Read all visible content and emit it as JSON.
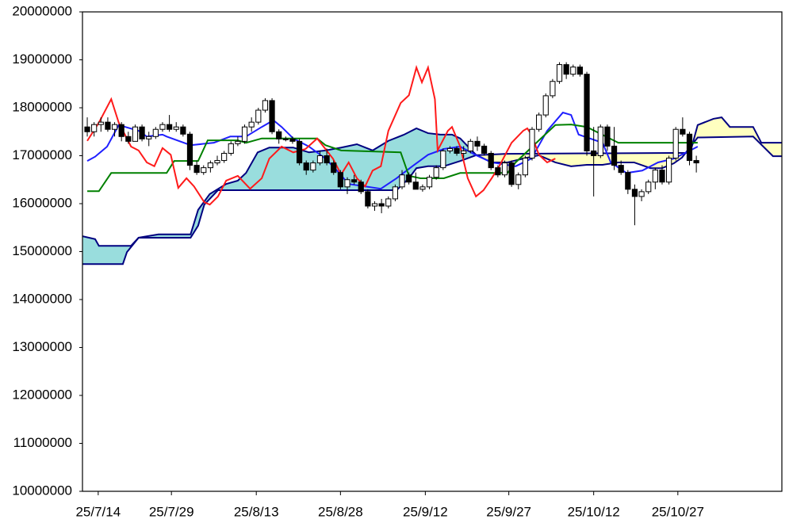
{
  "chart_data": {
    "type": "candlestick",
    "x": [
      0,
      1,
      2,
      3,
      4,
      5,
      6,
      7,
      8,
      9,
      10,
      11,
      12,
      13,
      14,
      15,
      16,
      17,
      18,
      19,
      20,
      21,
      22,
      23,
      24,
      25,
      26,
      27,
      28,
      29,
      30,
      31,
      32,
      33,
      34,
      35,
      36,
      37,
      38,
      39,
      40,
      41,
      42,
      43,
      44,
      45,
      46,
      47,
      48,
      49,
      50,
      51,
      52,
      53,
      54,
      55,
      56,
      57,
      58,
      59,
      60,
      61,
      62,
      63,
      64,
      65,
      66,
      67,
      68,
      69,
      70,
      71,
      72,
      73,
      74,
      75,
      76,
      77,
      78,
      79,
      80,
      81,
      82,
      83,
      84,
      85,
      86,
      87,
      88,
      89
    ],
    "open": [
      17600000,
      17500000,
      17650000,
      17700000,
      17550000,
      17650000,
      17400000,
      17300000,
      17600000,
      17350000,
      17400000,
      17550000,
      17650000,
      17550000,
      17600000,
      17450000,
      16800000,
      16650000,
      16750000,
      16850000,
      16900000,
      17050000,
      17250000,
      17300000,
      17600000,
      17700000,
      17950000,
      18150000,
      17500000,
      17350000,
      17350000,
      17300000,
      16850000,
      16700000,
      16850000,
      17000000,
      16850000,
      16650000,
      16350000,
      16500000,
      16450000,
      16250000,
      15950000,
      16000000,
      15950000,
      16100000,
      16350000,
      16600000,
      16450000,
      16300000,
      16350000,
      16550000,
      16750000,
      17100000,
      17150000,
      17050000,
      17100000,
      17300000,
      17200000,
      17050000,
      16750000,
      16600000,
      16850000,
      16400000,
      16600000,
      16950000,
      17550000,
      17850000,
      18250000,
      18550000,
      18900000,
      18700000,
      18850000,
      18700000,
      17100000,
      17000000,
      17600000,
      17200000,
      16800000,
      16650000,
      16300000,
      16150000,
      16250000,
      16450000,
      16700000,
      16450000,
      16950000,
      17550000,
      17450000,
      16900000
    ],
    "high": [
      17800000,
      17700000,
      17800000,
      17800000,
      17700000,
      17700000,
      17500000,
      17650000,
      17650000,
      17500000,
      17600000,
      17700000,
      17850000,
      17700000,
      17650000,
      17500000,
      16900000,
      16800000,
      16900000,
      17000000,
      17100000,
      17300000,
      17400000,
      17650000,
      17800000,
      18000000,
      18200000,
      18200000,
      17550000,
      17400000,
      17400000,
      17350000,
      16900000,
      16900000,
      17100000,
      17150000,
      16900000,
      16700000,
      16550000,
      16600000,
      16500000,
      16300000,
      16050000,
      16100000,
      16150000,
      16400000,
      16700000,
      16650000,
      16650000,
      16400000,
      16600000,
      16800000,
      17150000,
      17200000,
      17200000,
      17200000,
      17350000,
      17400000,
      17250000,
      17100000,
      16800000,
      16900000,
      16900000,
      16650000,
      17000000,
      17600000,
      17900000,
      18300000,
      18600000,
      18950000,
      18950000,
      18900000,
      18900000,
      18750000,
      17600000,
      17650000,
      17650000,
      17600000,
      16900000,
      16700000,
      16400000,
      16300000,
      16500000,
      16750000,
      16800000,
      17000000,
      17600000,
      17800000,
      17500000,
      17000000
    ],
    "low": [
      17400000,
      17400000,
      17500000,
      17500000,
      17400000,
      17300000,
      17250000,
      17300000,
      17300000,
      17200000,
      17350000,
      17500000,
      17500000,
      17500000,
      17400000,
      16700000,
      16600000,
      16600000,
      16650000,
      16800000,
      16850000,
      17000000,
      17200000,
      17250000,
      17500000,
      17650000,
      17900000,
      17450000,
      17250000,
      17300000,
      17250000,
      16800000,
      16600000,
      16650000,
      16800000,
      16800000,
      16600000,
      16300000,
      16200000,
      16400000,
      16200000,
      15900000,
      15850000,
      15800000,
      15900000,
      16050000,
      16300000,
      16400000,
      16300000,
      16250000,
      16300000,
      16500000,
      16700000,
      17050000,
      17000000,
      16950000,
      17050000,
      17100000,
      17000000,
      16700000,
      16550000,
      16550000,
      16350000,
      16300000,
      16550000,
      16900000,
      17500000,
      17800000,
      18200000,
      18500000,
      18600000,
      18650000,
      18650000,
      17000000,
      16150000,
      16950000,
      17100000,
      16700000,
      16600000,
      16200000,
      15550000,
      16050000,
      16200000,
      16300000,
      16400000,
      16400000,
      16900000,
      17400000,
      16800000,
      16650000
    ],
    "close": [
      17500000,
      17650000,
      17700000,
      17550000,
      17650000,
      17400000,
      17300000,
      17600000,
      17350000,
      17400000,
      17550000,
      17650000,
      17550000,
      17600000,
      17450000,
      16800000,
      16650000,
      16750000,
      16850000,
      16900000,
      17050000,
      17250000,
      17300000,
      17600000,
      17700000,
      17950000,
      18150000,
      17500000,
      17350000,
      17350000,
      17300000,
      16850000,
      16700000,
      16850000,
      17000000,
      16850000,
      16650000,
      16350000,
      16500000,
      16450000,
      16250000,
      15950000,
      16000000,
      15950000,
      16100000,
      16350000,
      16600000,
      16450000,
      16300000,
      16350000,
      16550000,
      16750000,
      17100000,
      17150000,
      17050000,
      17100000,
      17300000,
      17200000,
      17050000,
      16750000,
      16600000,
      16850000,
      16400000,
      16600000,
      16950000,
      17550000,
      17850000,
      18250000,
      18550000,
      18900000,
      18700000,
      18850000,
      18700000,
      17100000,
      17000000,
      17600000,
      17200000,
      16800000,
      16650000,
      16300000,
      16150000,
      16250000,
      16450000,
      16700000,
      16450000,
      16950000,
      17550000,
      17450000,
      16900000,
      16850000
    ],
    "up_color": "#ffffff",
    "down_color": "#000000",
    "lines": [
      {
        "color": "#1f1fff",
        "x": [
          0,
          1.15,
          2.9,
          4.6,
          7.5,
          8.7,
          11,
          11.6,
          15.1,
          18.5,
          20.9,
          23.2,
          25.5,
          27.2,
          28.4,
          30.1,
          32.4,
          34.8,
          36.5,
          38.2,
          40.6,
          42.9,
          45.2,
          47.5,
          49.8,
          52.1,
          54.5,
          56.8,
          59.1,
          62.6,
          64.9,
          67.2,
          69.5,
          70.7,
          71.8,
          75.3,
          76.5,
          78.8,
          81.1,
          83.4,
          85.7,
          88.1,
          89.2
        ],
        "values": [
          16890000,
          16980000,
          17190000,
          17640000,
          17520000,
          17400000,
          17440000,
          17400000,
          17220000,
          17270000,
          17400000,
          17400000,
          17600000,
          17740000,
          17600000,
          17360000,
          17190000,
          16940000,
          16690000,
          16410000,
          16360000,
          16310000,
          16530000,
          16780000,
          17020000,
          17140000,
          17190000,
          17010000,
          16860000,
          16780000,
          16940000,
          17520000,
          17900000,
          17850000,
          17440000,
          17270000,
          16860000,
          16640000,
          16690000,
          16860000,
          16940000,
          17110000,
          17190000
        ]
      },
      {
        "color": "#008000",
        "x": [
          0,
          1.7,
          3.5,
          11.6,
          12.7,
          16.2,
          17.6,
          22,
          23.2,
          25.5,
          33.6,
          34.8,
          37.1,
          45.8,
          47,
          48.7,
          52.1,
          54.5,
          61.4,
          62.6,
          66,
          68.4,
          70.7,
          73,
          77.6,
          83.4,
          89.2
        ],
        "values": [
          16260000,
          16260000,
          16640000,
          16640000,
          16890000,
          16890000,
          17320000,
          17320000,
          17270000,
          17360000,
          17360000,
          17220000,
          17110000,
          17070000,
          16580000,
          16530000,
          16530000,
          16640000,
          16640000,
          16860000,
          17320000,
          17640000,
          17650000,
          17600000,
          17270000,
          17270000,
          17270000
        ]
      },
      {
        "color": "#ff1a1a",
        "x": [
          0,
          1.7,
          3.5,
          4.6,
          6.4,
          7.5,
          8.7,
          9.8,
          11,
          12.2,
          13.3,
          14.5,
          15.6,
          17.1,
          17.9,
          19.1,
          20.3,
          22,
          23.8,
          25.5,
          26.6,
          28.4,
          30.1,
          31.9,
          33.6,
          34.8,
          35.9,
          37.1,
          38.2,
          39.4,
          40.6,
          41.7,
          42.9,
          44,
          45.8,
          47,
          48.1,
          48.9,
          49.8,
          50.8,
          51.2,
          52.7,
          53.3,
          54.5,
          55.6,
          56.8,
          57.9,
          59.1,
          60.2,
          62,
          63.7,
          64.3,
          64.9,
          66,
          67.2,
          68.4
        ],
        "values": [
          17310000,
          17690000,
          18180000,
          17690000,
          17190000,
          17110000,
          16860000,
          16780000,
          17160000,
          17020000,
          16330000,
          16530000,
          16360000,
          16030000,
          15980000,
          16150000,
          16480000,
          16580000,
          16310000,
          16530000,
          16940000,
          17190000,
          17070000,
          17140000,
          17360000,
          17140000,
          16940000,
          16610000,
          16860000,
          16530000,
          16360000,
          16690000,
          16780000,
          17520000,
          18100000,
          18260000,
          18840000,
          18530000,
          18840000,
          18180000,
          17110000,
          17520000,
          17600000,
          17190000,
          16530000,
          16150000,
          16280000,
          16530000,
          16780000,
          17270000,
          17520000,
          17570000,
          17440000,
          17020000,
          16860000,
          16940000
        ]
      }
    ],
    "cloud": {
      "line_color": "#000080",
      "up_color": "#99dddd",
      "down_color": "#ffffc0",
      "span_a": {
        "x": [
          -0.7,
          1.15,
          1.7,
          6.4,
          7.5,
          10.4,
          15.1,
          16.2,
          17.9,
          20.3,
          22,
          23.2,
          24.9,
          26.6,
          30.1,
          32.4,
          34.8,
          37.1,
          39.4,
          41.7,
          44,
          46.3,
          48.1,
          49.8,
          51.6,
          53.3,
          54.5,
          56.8,
          59.1,
          61.4,
          63.7,
          66,
          68.4,
          70.7,
          73,
          75.3,
          77.6,
          79.9,
          82.3,
          84,
          85.7,
          86.9,
          89.2,
          97.3,
          100.2,
          101.5
        ],
        "values": [
          15320000,
          15260000,
          15120000,
          15120000,
          15290000,
          15360000,
          15360000,
          15870000,
          16200000,
          16410000,
          16480000,
          16640000,
          17070000,
          17170000,
          17170000,
          17070000,
          17110000,
          17170000,
          17240000,
          17110000,
          17310000,
          17440000,
          17570000,
          17470000,
          17440000,
          17440000,
          17360000,
          17020000,
          16860000,
          16860000,
          16940000,
          17010000,
          16860000,
          16780000,
          16810000,
          16810000,
          16860000,
          16860000,
          16740000,
          16740000,
          16840000,
          16960000,
          17380000,
          17400000,
          16990000,
          16990000
        ]
      },
      "span_b": {
        "x": [
          -0.7,
          5.2,
          5.8,
          7.5,
          15.1,
          16.2,
          17.1,
          19.1,
          45.2,
          47,
          48.1,
          49.8,
          52.1,
          54.5,
          56.8,
          61.4,
          88.1,
          89.2,
          91.5,
          92.7,
          93.9,
          97.3,
          98.5,
          101.5
        ],
        "values": [
          14740000,
          14740000,
          14990000,
          15290000,
          15290000,
          15540000,
          15980000,
          16280000,
          16280000,
          16530000,
          16740000,
          16780000,
          16780000,
          16890000,
          17010000,
          17040000,
          17060000,
          17640000,
          17770000,
          17800000,
          17600000,
          17600000,
          17270000,
          17270000
        ]
      }
    },
    "xlim": [
      -0.7,
      101.5
    ],
    "ylim": [
      10000000,
      20000000
    ],
    "yticks": [
      10000000,
      11000000,
      12000000,
      13000000,
      14000000,
      15000000,
      16000000,
      17000000,
      18000000,
      19000000,
      20000000
    ],
    "xticks": [
      {
        "value": 1.6,
        "label": "25/7/14"
      },
      {
        "value": 12.3,
        "label": "25/7/29"
      },
      {
        "value": 24.7,
        "label": "25/8/13"
      },
      {
        "value": 37,
        "label": "25/8/28"
      },
      {
        "value": 49.4,
        "label": "25/9/12"
      },
      {
        "value": 61.6,
        "label": "25/9/27"
      },
      {
        "value": 74,
        "label": "25/10/12"
      },
      {
        "value": 86.3,
        "label": "25/10/27"
      }
    ],
    "grid": false
  }
}
